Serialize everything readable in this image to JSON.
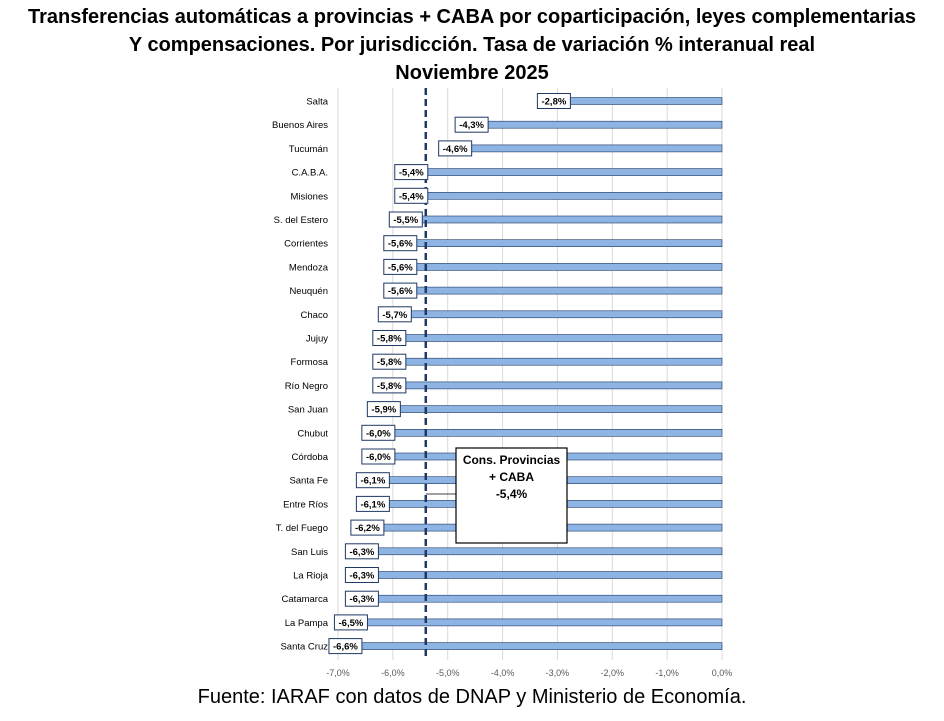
{
  "title_lines": [
    "Transferencias automáticas  a provincias  + CABA por coparticipación,  leyes complementarias",
    "Y compensaciones.  Por jurisdicción. Tasa de variación % interanual  real",
    "Noviembre 2025"
  ],
  "source": "Fuente: IARAF con datos de DNAP y Ministerio de Economía.",
  "annotation": {
    "lines": [
      "Cons. Provincias",
      "+ CABA",
      "-5,4%"
    ],
    "value": -5.4
  },
  "colors": {
    "bar_fill": "#8DB4E2",
    "bar_stroke": "#1F3864",
    "reference_line": "#1F3864",
    "grid": "#D9D9D9"
  },
  "chart_data": {
    "type": "bar",
    "orientation": "horizontal",
    "categories": [
      "Salta",
      "Buenos Aires",
      "Tucumán",
      "C.A.B.A.",
      "Misiones",
      "S. del Estero",
      "Corrientes",
      "Mendoza",
      "Neuquén",
      "Chaco",
      "Jujuy",
      "Formosa",
      "Río Negro",
      "San Juan",
      "Chubut",
      "Córdoba",
      "Santa Fe",
      "Entre Ríos",
      "T. del Fuego",
      "San Luis",
      "La Rioja",
      "Catamarca",
      "La Pampa",
      "Santa Cruz"
    ],
    "values": [
      -2.8,
      -4.3,
      -4.6,
      -5.4,
      -5.4,
      -5.5,
      -5.6,
      -5.6,
      -5.6,
      -5.7,
      -5.8,
      -5.8,
      -5.8,
      -5.9,
      -6.0,
      -6.0,
      -6.1,
      -6.1,
      -6.2,
      -6.3,
      -6.3,
      -6.3,
      -6.5,
      -6.6
    ],
    "value_labels": [
      "-2,8%",
      "-4,3%",
      "-4,6%",
      "-5,4%",
      "-5,4%",
      "-5,5%",
      "-5,6%",
      "-5,6%",
      "-5,6%",
      "-5,7%",
      "-5,8%",
      "-5,8%",
      "-5,8%",
      "-5,9%",
      "-6,0%",
      "-6,0%",
      "-6,1%",
      "-6,1%",
      "-6,2%",
      "-6,3%",
      "-6,3%",
      "-6,3%",
      "-6,5%",
      "-6,6%"
    ],
    "xlim": [
      -7.0,
      0.0
    ],
    "xticks": [
      -7,
      -6,
      -5,
      -4,
      -3,
      -2,
      -1,
      0
    ],
    "xtick_labels": [
      "-7,0%",
      "-6,0%",
      "-5,0%",
      "-4,0%",
      "-3,0%",
      "-2,0%",
      "-1,0%",
      "0,0%"
    ],
    "reference_value": -5.4,
    "grid": true
  }
}
